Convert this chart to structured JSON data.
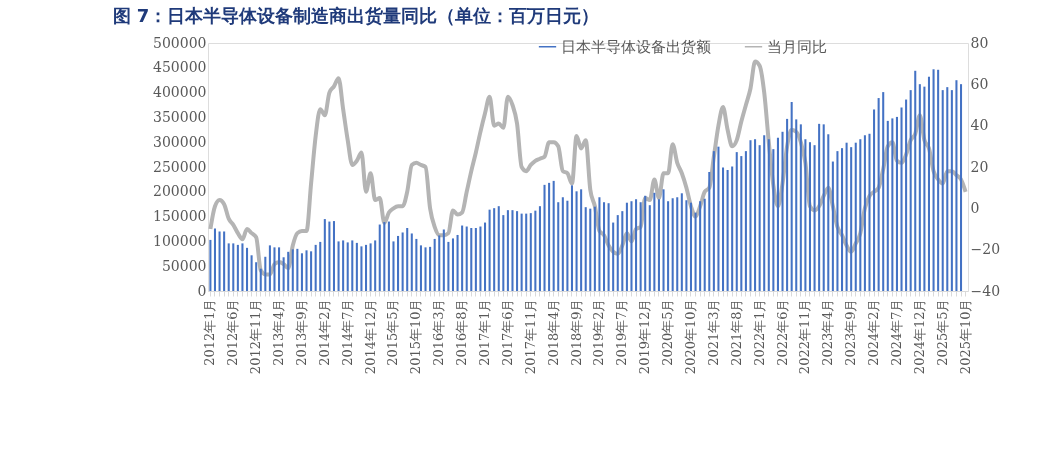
{
  "chart_data": {
    "type": "bar",
    "title": "图 7：日本半导体设备制造商出货量同比（单位：百万日元）",
    "categories": [
      "2012年1月",
      null,
      null,
      null,
      null,
      "2012年6月",
      null,
      null,
      null,
      null,
      "2012年11月",
      null,
      null,
      null,
      null,
      "2013年4月",
      null,
      null,
      null,
      null,
      "2013年9月",
      null,
      null,
      null,
      null,
      "2014年2月",
      null,
      null,
      null,
      null,
      "2014年7月",
      null,
      null,
      null,
      null,
      "2014年12月",
      null,
      null,
      null,
      null,
      "2015年5月",
      null,
      null,
      null,
      null,
      "2015年10月",
      null,
      null,
      null,
      null,
      "2016年3月",
      null,
      null,
      null,
      null,
      "2016年8月",
      null,
      null,
      null,
      null,
      "2017年1月",
      null,
      null,
      null,
      null,
      "2017年6月",
      null,
      null,
      null,
      null,
      "2017年11月",
      null,
      null,
      null,
      null,
      "2018年4月",
      null,
      null,
      null,
      null,
      "2018年9月",
      null,
      null,
      null,
      null,
      "2019年2月",
      null,
      null,
      null,
      null,
      "2019年7月",
      null,
      null,
      null,
      null,
      "2019年12月",
      null,
      null,
      null,
      null,
      "2020年5月",
      null,
      null,
      null,
      null,
      "2020年10月",
      null,
      null,
      null,
      null,
      "2021年3月",
      null,
      null,
      null,
      null,
      "2021年8月",
      null,
      null,
      null,
      null,
      "2022年1月",
      null,
      null,
      null,
      null,
      "2022年6月",
      null,
      null,
      null,
      null,
      "2022年11月",
      null,
      null,
      null,
      null,
      "2023年4月",
      null,
      null,
      null,
      null,
      "2023年9月",
      null,
      null,
      null,
      null,
      "2024年2月",
      null,
      null,
      null,
      null,
      "2024年7月",
      null,
      null,
      null,
      null,
      "2024年12月",
      null,
      null,
      null,
      null,
      "2025年5月",
      null,
      null,
      null,
      null,
      "2025年10月"
    ],
    "series": [
      {
        "name": "日本半导体设备出货额",
        "color": "#4472c4",
        "values": [
          103000,
          126000,
          120000,
          120000,
          96000,
          96000,
          93000,
          96000,
          87000,
          72000,
          58000,
          45000,
          69000,
          92000,
          88000,
          88000,
          68000,
          79000,
          84000,
          85000,
          76000,
          82000,
          80000,
          93000,
          99000,
          145000,
          140000,
          141000,
          100000,
          102000,
          98000,
          102000,
          97000,
          90000,
          93000,
          96000,
          102000,
          134000,
          139000,
          140000,
          100000,
          111000,
          118000,
          127000,
          116000,
          105000,
          92000,
          88000,
          89000,
          105000,
          112000,
          124000,
          99000,
          106000,
          113000,
          132000,
          130000,
          127000,
          127000,
          130000,
          138000,
          164000,
          167000,
          171000,
          153000,
          163000,
          163000,
          161000,
          156000,
          156000,
          157000,
          162000,
          171000,
          214000,
          218000,
          222000,
          179000,
          189000,
          182000,
          213000,
          201000,
          205000,
          169000,
          166000,
          170000,
          189000,
          179000,
          177000,
          138000,
          153000,
          161000,
          178000,
          181000,
          185000,
          179000,
          192000,
          173000,
          198000,
          185000,
          205000,
          181000,
          187000,
          189000,
          197000,
          183000,
          178000,
          158000,
          181000,
          186000,
          240000,
          282000,
          291000,
          249000,
          244000,
          251000,
          280000,
          272000,
          282000,
          304000,
          306000,
          294000,
          314000,
          306000,
          286000,
          309000,
          321000,
          347000,
          381000,
          346000,
          336000,
          306000,
          300000,
          294000,
          337000,
          336000,
          316000,
          261000,
          282000,
          288000,
          299000,
          290000,
          299000,
          306000,
          314000,
          317000,
          366000,
          389000,
          401000,
          343000,
          348000,
          351000,
          370000,
          386000,
          405000,
          444000,
          417000,
          412000,
          432000,
          447000,
          446000,
          405000,
          411000,
          405000,
          425000,
          417000,
          null
        ]
      },
      {
        "name": "当月同比",
        "type": "line",
        "axis": "y2",
        "color": "#b4b4b4",
        "values": [
          -10,
          1,
          4,
          2,
          -5,
          -8,
          -12,
          -15,
          -10,
          -12,
          -14,
          -30,
          -32,
          -32,
          -27,
          -26,
          -27,
          -29,
          -18,
          -12,
          -11,
          -11,
          12,
          35,
          48,
          45,
          56,
          59,
          63,
          48,
          33,
          21,
          23,
          27,
          8,
          17,
          4,
          5,
          -7,
          -2,
          0,
          1,
          1,
          8,
          21,
          22,
          21,
          20,
          0,
          -9,
          -13,
          -13,
          -12,
          -1,
          -3,
          -2,
          8,
          18,
          27,
          37,
          46,
          54,
          40,
          41,
          39,
          54,
          50,
          41,
          20,
          18,
          21,
          23,
          24,
          25,
          32,
          32,
          30,
          18,
          17,
          12,
          35,
          29,
          33,
          9,
          1,
          -11,
          -13,
          -18,
          -21,
          -22,
          -18,
          -12,
          -16,
          -10,
          -9,
          5,
          4,
          14,
          5,
          17,
          17,
          31,
          22,
          17,
          10,
          1,
          -4,
          1,
          8,
          10,
          25,
          40,
          49,
          38,
          30,
          33,
          42,
          50,
          58,
          71,
          69,
          56,
          32,
          11,
          1,
          12,
          30,
          38,
          37,
          32,
          22,
          1,
          -1,
          1,
          6,
          10,
          1,
          -9,
          -13,
          -18,
          -21,
          -17,
          -12,
          0,
          6,
          8,
          10,
          19,
          30,
          32,
          23,
          22,
          26,
          33,
          36,
          45,
          33,
          29,
          18,
          14,
          12,
          18,
          18,
          16,
          14,
          8
        ]
      }
    ],
    "ylim": [
      0,
      500000
    ],
    "yticks": [
      0,
      50000,
      100000,
      150000,
      200000,
      250000,
      300000,
      350000,
      400000,
      450000,
      500000
    ],
    "y2lim": [
      -40,
      80
    ],
    "y2ticks": [
      -40,
      -20,
      0,
      20,
      40,
      60,
      80
    ],
    "legend": "top",
    "grid": false
  }
}
